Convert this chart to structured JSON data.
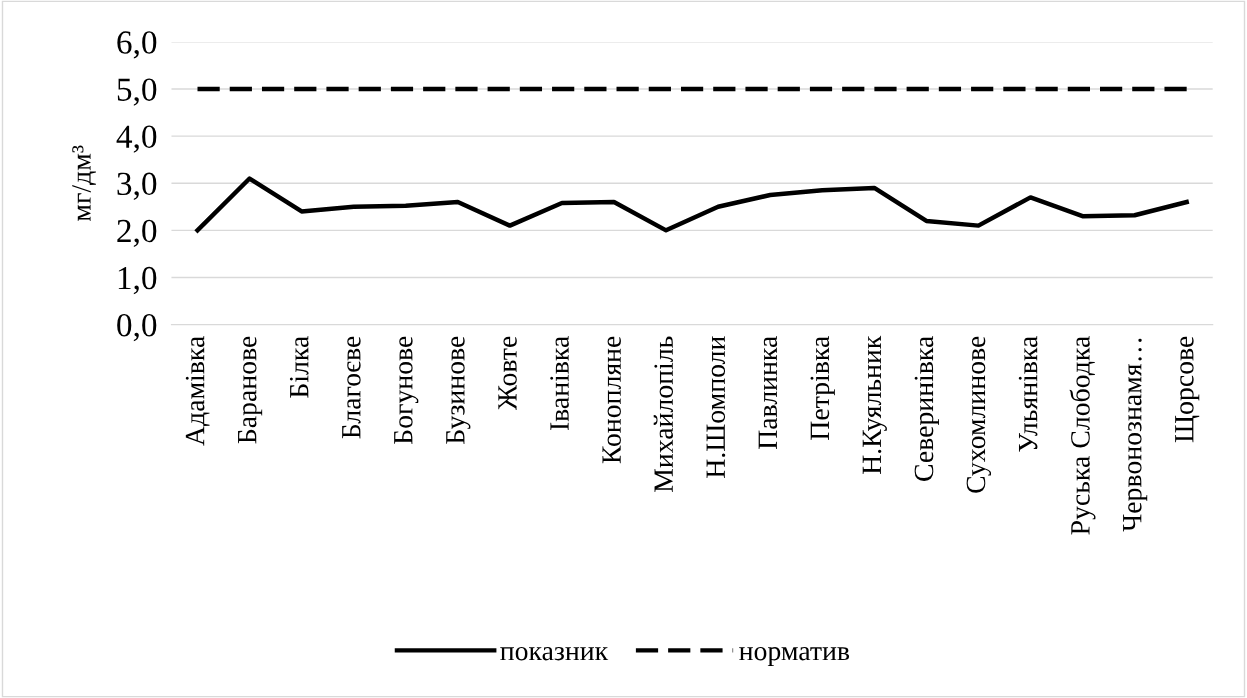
{
  "chart_data": {
    "type": "line",
    "ylabel": "мг/дм³",
    "categories": [
      "Адамівка",
      "Баранове",
      "Білка",
      "Благоєве",
      "Богунове",
      "Бузинове",
      "Жовте",
      "Іванівка",
      "Конопляне",
      "Михайлопіль",
      "Н.Шомполи",
      "Павлинка",
      "Петрівка",
      "Н.Куяльник",
      "Северинівка",
      "Сухомлинове",
      "Ульянівка",
      "Руська Слободка",
      "Червонознамя…",
      "Щорсове"
    ],
    "series": [
      {
        "name": "показник",
        "color": "#000000",
        "line_style": "solid",
        "values": [
          2.0,
          3.1,
          2.4,
          2.5,
          2.52,
          2.6,
          2.1,
          2.58,
          2.6,
          2.0,
          2.5,
          2.75,
          2.85,
          2.9,
          2.2,
          2.1,
          2.7,
          2.3,
          2.32,
          2.6
        ]
      },
      {
        "name": "норматив",
        "color": "#000000",
        "line_style": "dashed",
        "values": [
          5.0,
          5.0,
          5.0,
          5.0,
          5.0,
          5.0,
          5.0,
          5.0,
          5.0,
          5.0,
          5.0,
          5.0,
          5.0,
          5.0,
          5.0,
          5.0,
          5.0,
          5.0,
          5.0,
          5.0
        ]
      }
    ],
    "ylim": [
      0,
      6
    ],
    "yticks": [
      {
        "value": 0,
        "label": "0,0"
      },
      {
        "value": 1,
        "label": "1,0"
      },
      {
        "value": 2,
        "label": "2,0"
      },
      {
        "value": 3,
        "label": "3,0"
      },
      {
        "value": 4,
        "label": "4,0"
      },
      {
        "value": 5,
        "label": "5,0"
      },
      {
        "value": 6,
        "label": "6,0"
      }
    ],
    "grid": "y",
    "legend": "bottom",
    "marker": "none"
  }
}
